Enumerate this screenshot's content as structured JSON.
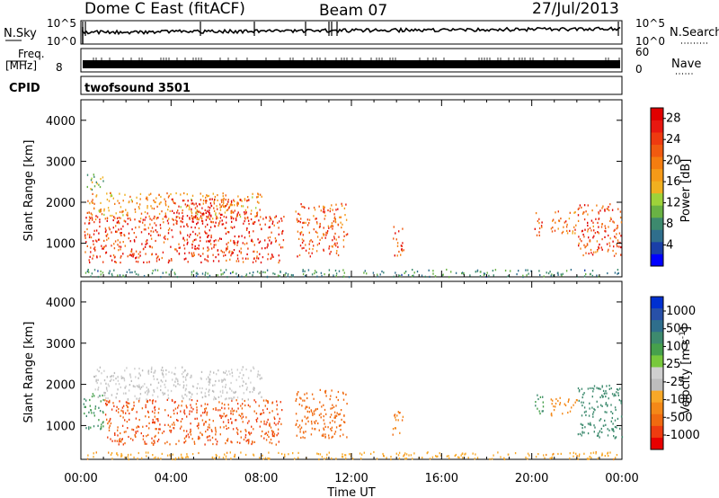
{
  "header": {
    "title": "Dome C East (fitACF)",
    "beam": "Beam 07",
    "date": "27/Jul/2013"
  },
  "strips": {
    "nsky_label": "N.Sky",
    "nsky_ticks": [
      "10^5",
      "10^0"
    ],
    "nsearch_label": "N.Search",
    "nsearch_ticks": [
      "10^5",
      "10^0"
    ],
    "freq_label": "Freq.",
    "freq_unit": "[MHz]",
    "freq_ticks": [
      "8"
    ],
    "nave_label": "Nave",
    "nave_ticks": [
      "60",
      "0"
    ],
    "cpid_label": "CPID",
    "cpid_value": "twofsound 3501"
  },
  "colors": {
    "power": [
      "#0000ff",
      "#1a3fa8",
      "#2f6e8c",
      "#3d8a6e",
      "#69b244",
      "#9ed23a",
      "#f0b020",
      "#f59a18",
      "#f47d10",
      "#f05a10",
      "#ee3a10",
      "#e81810",
      "#e00000"
    ],
    "velocity": [
      "#0030d0",
      "#2850a8",
      "#2f6e8c",
      "#3d8a6e",
      "#46a04c",
      "#78c83c",
      "#cfcfcf",
      "#bdbdbd",
      "#f8a828",
      "#f48818",
      "#f06a10",
      "#ee3c10",
      "#e80000"
    ]
  },
  "chart_data": [
    {
      "type": "heatmap",
      "name": "power",
      "xlabel": "",
      "ylabel": "Slant Range [km]",
      "xlim": [
        0,
        24
      ],
      "ylim": [
        180,
        4500
      ],
      "yticks": [
        1000,
        2000,
        3000,
        4000
      ],
      "xticks": [
        0,
        4,
        8,
        12,
        16,
        20,
        24
      ],
      "colorbar": {
        "label": "Power [dB]",
        "ticks": [
          4,
          8,
          12,
          16,
          20,
          24,
          28
        ],
        "range": [
          0,
          30
        ]
      },
      "regions": [
        {
          "t0": 0.1,
          "t1": 9.0,
          "r0": 550,
          "r1": 1700,
          "value": 25
        },
        {
          "t0": 0.2,
          "t1": 8.0,
          "r0": 1600,
          "r1": 2250,
          "value": 18
        },
        {
          "t0": 0.2,
          "t1": 1.0,
          "r0": 2300,
          "r1": 2700,
          "value": 12
        },
        {
          "t0": 4.0,
          "t1": 7.5,
          "r0": 1500,
          "r1": 2100,
          "value": 27
        },
        {
          "t0": 9.5,
          "t1": 11.8,
          "r0": 700,
          "r1": 2000,
          "value": 22
        },
        {
          "t0": 13.8,
          "t1": 14.3,
          "r0": 700,
          "r1": 1450,
          "value": 26
        },
        {
          "t0": 20.1,
          "t1": 20.5,
          "r0": 1200,
          "r1": 1800,
          "value": 24
        },
        {
          "t0": 20.8,
          "t1": 22.0,
          "r0": 1250,
          "r1": 1800,
          "value": 21
        },
        {
          "t0": 22.0,
          "t1": 24.0,
          "r0": 700,
          "r1": 2000,
          "value": 24
        },
        {
          "t0": 0.1,
          "t1": 24.0,
          "r0": 200,
          "r1": 380,
          "value": 8
        }
      ]
    },
    {
      "type": "heatmap",
      "name": "velocity",
      "xlabel": "Time UT",
      "ylabel": "Slant Range [km]",
      "xlim": [
        0,
        24
      ],
      "ylim": [
        180,
        4500
      ],
      "yticks": [
        1000,
        2000,
        3000,
        4000
      ],
      "xticks": [
        0,
        4,
        8,
        12,
        16,
        20,
        24
      ],
      "xticklabels": [
        "00:00",
        "04:00",
        "08:00",
        "12:00",
        "16:00",
        "20:00",
        "00:00"
      ],
      "colorbar": {
        "label": "Velocity [m s^-1]",
        "ticks": [
          "1000",
          "500",
          "100",
          "25",
          "-25",
          "-100",
          "-500",
          "-1000"
        ]
      },
      "regions": [
        {
          "t0": 0.1,
          "t1": 1.0,
          "r0": 900,
          "r1": 1800,
          "value": 100
        },
        {
          "t0": 1.0,
          "t1": 9.0,
          "r0": 550,
          "r1": 1650,
          "value": -300
        },
        {
          "t0": 0.5,
          "t1": 8.0,
          "r0": 1650,
          "r1": 2450,
          "value": 0
        },
        {
          "t0": 9.5,
          "t1": 11.8,
          "r0": 700,
          "r1": 1900,
          "value": -150
        },
        {
          "t0": 13.8,
          "t1": 14.3,
          "r0": 800,
          "r1": 1400,
          "value": -100
        },
        {
          "t0": 20.1,
          "t1": 20.5,
          "r0": 1200,
          "r1": 1800,
          "value": 100
        },
        {
          "t0": 20.8,
          "t1": 22.0,
          "r0": 1250,
          "r1": 1700,
          "value": -80
        },
        {
          "t0": 22.0,
          "t1": 24.0,
          "r0": 700,
          "r1": 2000,
          "value": 200
        },
        {
          "t0": 0.1,
          "t1": 24.0,
          "r0": 200,
          "r1": 380,
          "value": -50
        }
      ]
    }
  ]
}
